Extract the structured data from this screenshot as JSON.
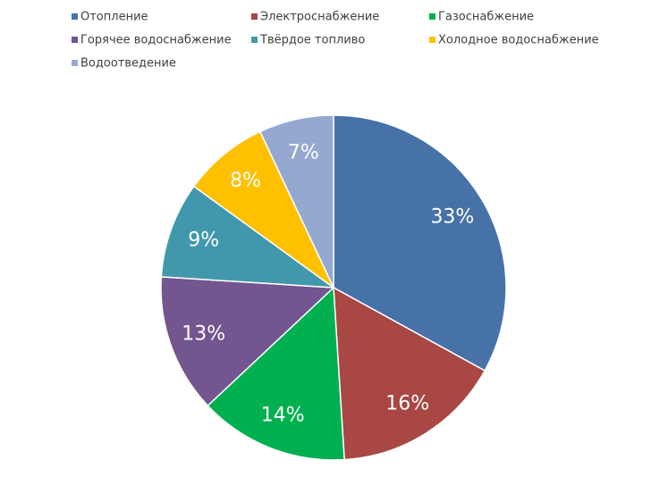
{
  "chart_data": {
    "type": "pie",
    "categories": [
      "Отопление",
      "Электроснабжение",
      "Газоснабжение",
      "Горячее водоснабжение",
      "Твёрдое топливо",
      "Холодное водоснабжение",
      "Водоотведение"
    ],
    "values": [
      33,
      16,
      14,
      13,
      9,
      8,
      7
    ],
    "value_labels": [
      "33%",
      "16%",
      "14%",
      "13%",
      "9%",
      "8%",
      "7%"
    ],
    "colors": [
      "#4672a8",
      "#a84744",
      "#00b050",
      "#735590",
      "#4198ad",
      "#ffc000",
      "#95a8d0"
    ],
    "legend": "top"
  }
}
